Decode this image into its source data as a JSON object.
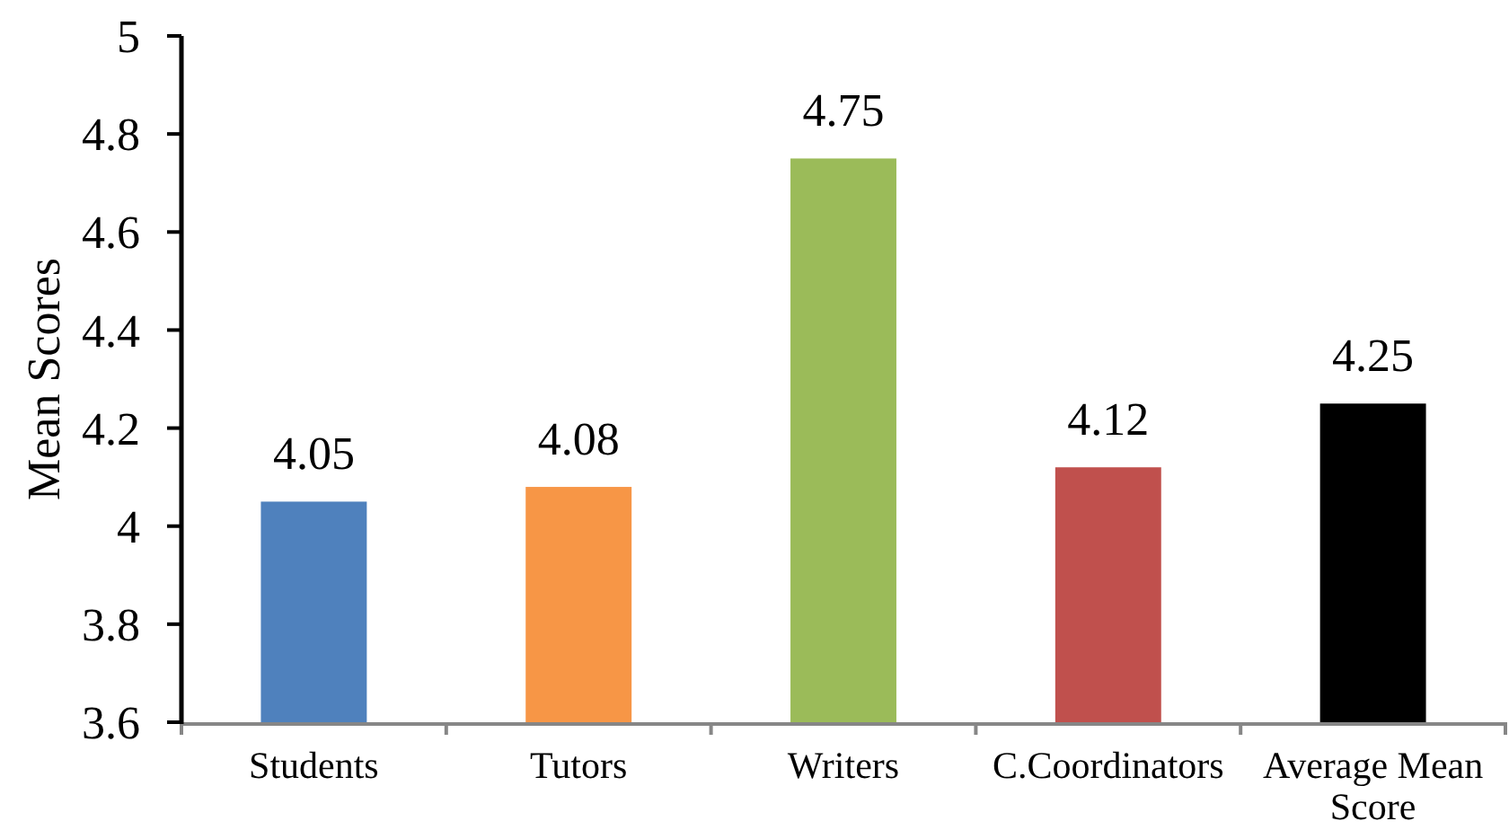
{
  "chart_data": {
    "type": "bar",
    "ylabel": "Mean Scores",
    "categories": [
      "Students",
      "Tutors",
      "Writers",
      "C.Coordinators",
      "Average Mean Score"
    ],
    "values": [
      4.05,
      4.08,
      4.75,
      4.12,
      4.25
    ],
    "colors": [
      "#4f81bd",
      "#f79646",
      "#9bbb59",
      "#c0504d",
      "#000000"
    ],
    "ylim": [
      3.6,
      5
    ],
    "yticks": [
      3.6,
      3.8,
      4,
      4.2,
      4.4,
      4.6,
      4.8,
      5
    ],
    "data_labels": true
  }
}
